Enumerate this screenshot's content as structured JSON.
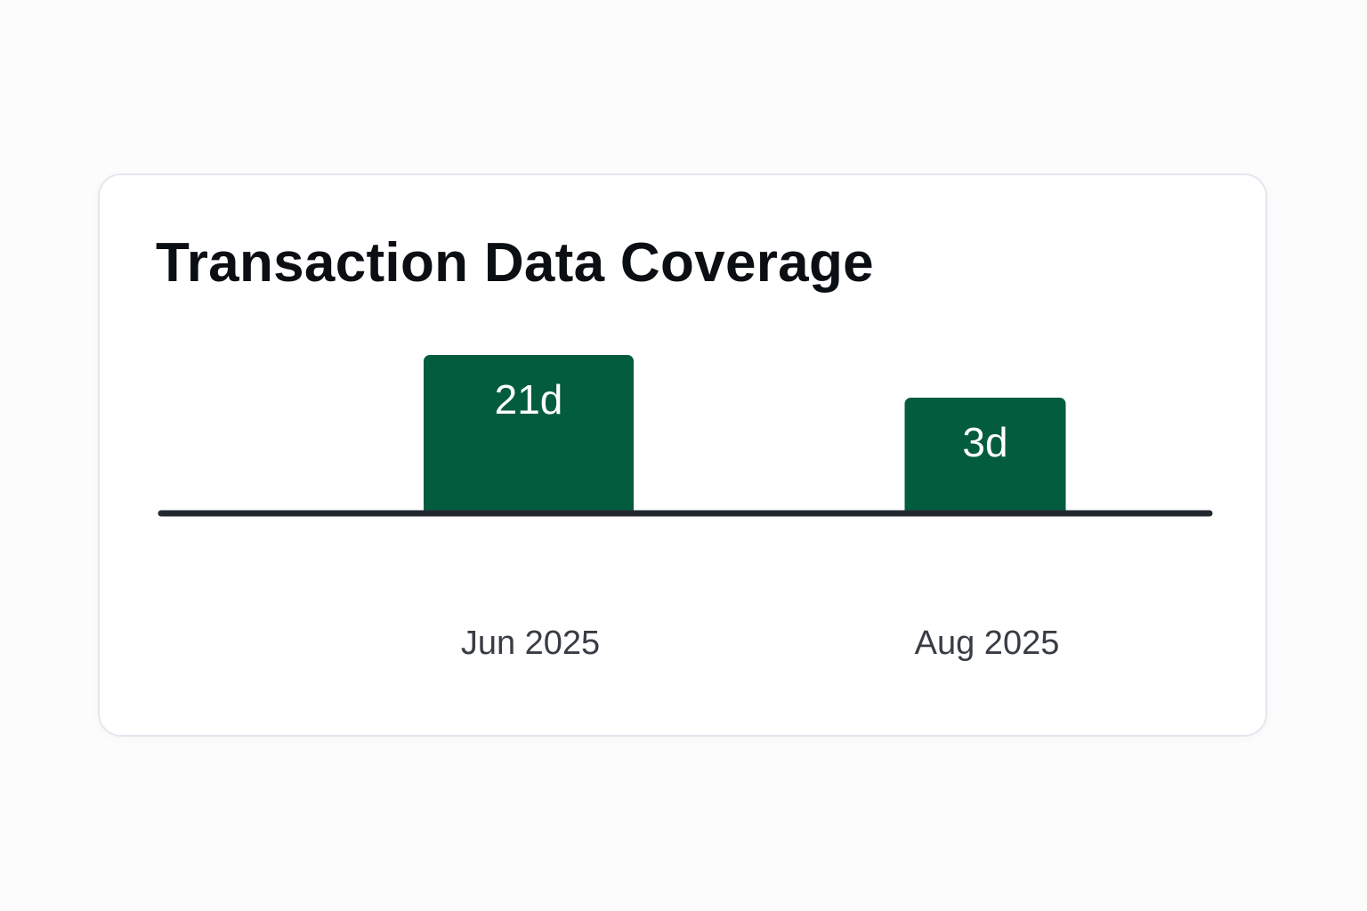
{
  "title": "Transaction Data Coverage",
  "colors": {
    "bar": "#045c3f",
    "bar_label": "#ffffff",
    "axis": "#232830",
    "tick_label": "#383d45",
    "title": "#0b0f14",
    "card_border": "#e3e7ee"
  },
  "chart_data": {
    "type": "bar",
    "title": "Transaction Data Coverage",
    "categories": [
      "Jun 2025",
      "Aug 2025"
    ],
    "values": [
      21,
      3
    ],
    "data_labels": [
      "21d",
      "3d"
    ],
    "xlabel": "",
    "ylabel": "",
    "y_axis_visible": false,
    "grid": false,
    "legend": "none"
  }
}
